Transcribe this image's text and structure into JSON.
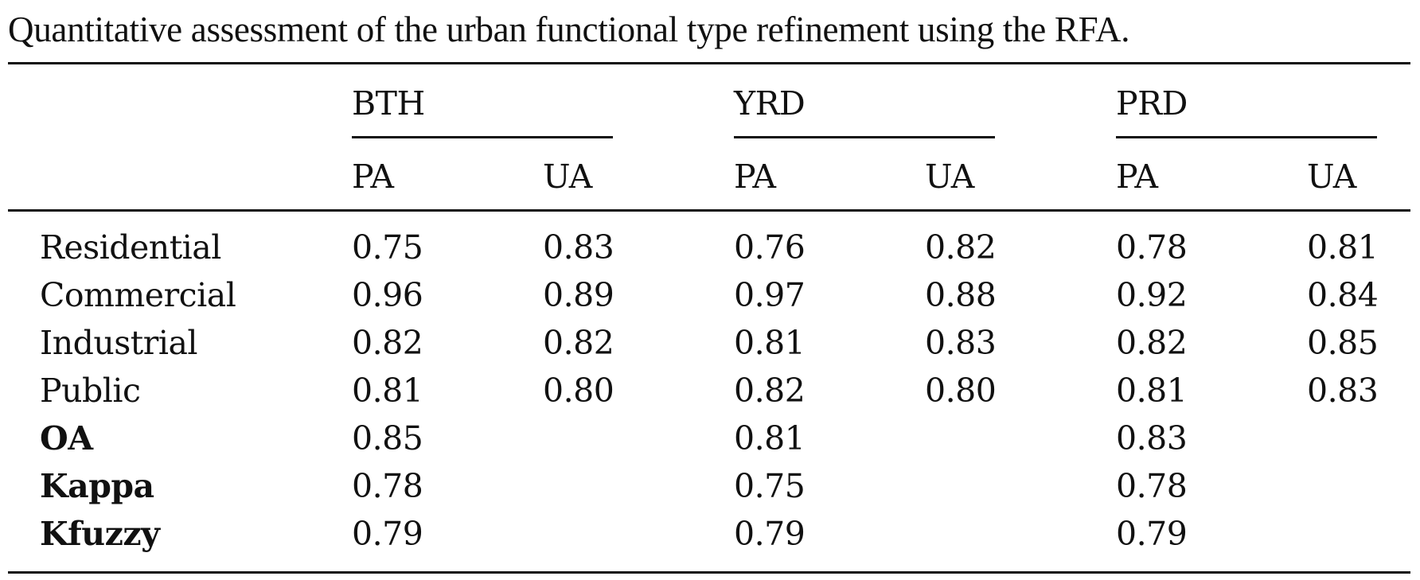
{
  "caption": "Quantitative assessment of the urban functional type refinement using the RFA.",
  "groups": [
    "BTH",
    "YRD",
    "PRD"
  ],
  "subheaders": [
    "PA",
    "UA",
    "PA",
    "UA",
    "PA",
    "UA"
  ],
  "rows": [
    {
      "label": "Residential",
      "bold": false,
      "values": [
        "0.75",
        "0.83",
        "0.76",
        "0.82",
        "0.78",
        "0.81"
      ]
    },
    {
      "label": "Commercial",
      "bold": false,
      "values": [
        "0.96",
        "0.89",
        "0.97",
        "0.88",
        "0.92",
        "0.84"
      ]
    },
    {
      "label": "Industrial",
      "bold": false,
      "values": [
        "0.82",
        "0.82",
        "0.81",
        "0.83",
        "0.82",
        "0.85"
      ]
    },
    {
      "label": "Public",
      "bold": false,
      "values": [
        "0.81",
        "0.80",
        "0.82",
        "0.80",
        "0.81",
        "0.83"
      ]
    },
    {
      "label": "OA",
      "bold": true,
      "values": [
        "0.85",
        "",
        "0.81",
        "",
        "0.83",
        ""
      ]
    },
    {
      "label": "Kappa",
      "bold": true,
      "values": [
        "0.78",
        "",
        "0.75",
        "",
        "0.78",
        ""
      ]
    },
    {
      "label": "Kfuzzy",
      "bold": true,
      "values": [
        "0.79",
        "",
        "0.79",
        "",
        "0.79",
        ""
      ]
    }
  ]
}
